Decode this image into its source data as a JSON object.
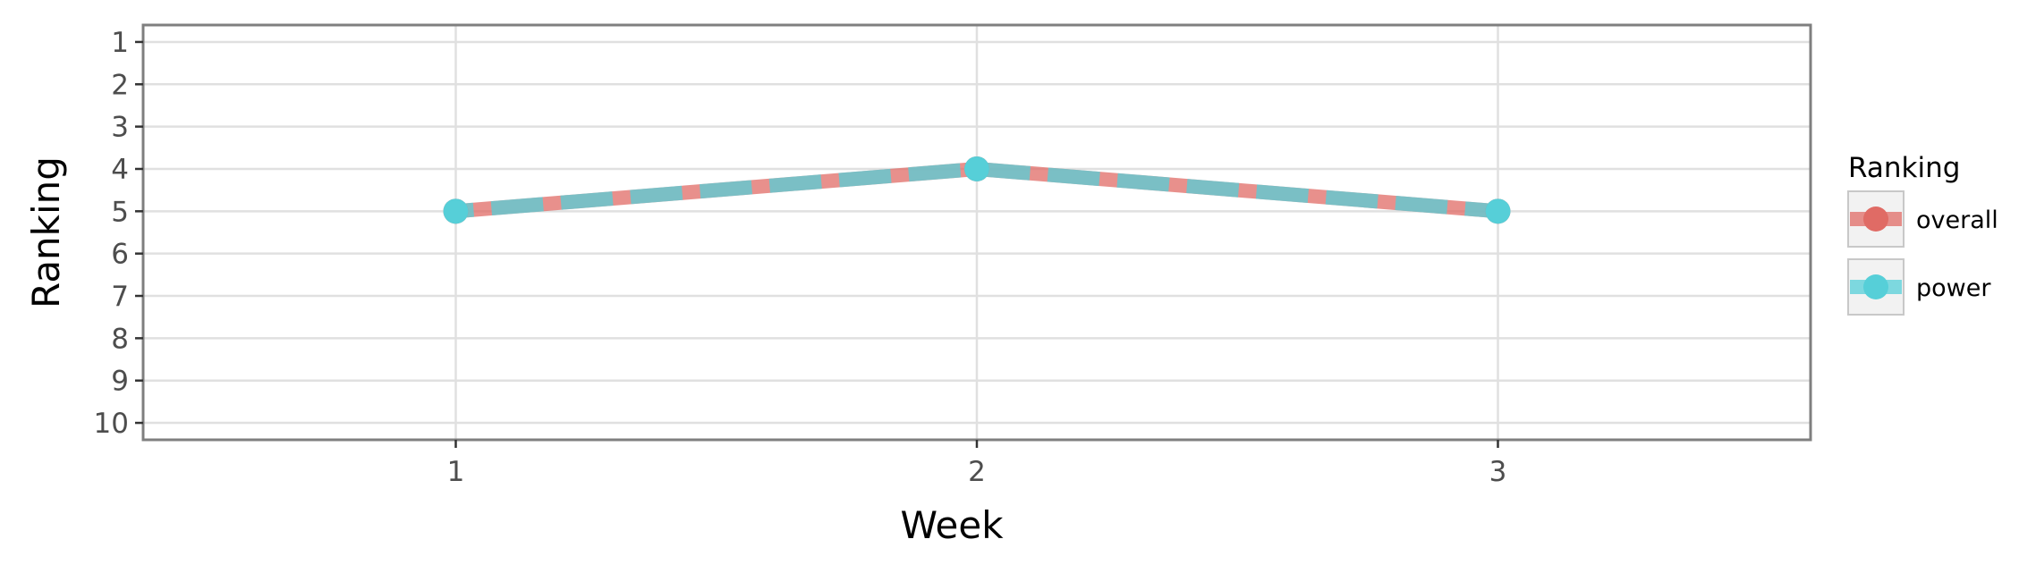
{
  "chart_data": {
    "type": "line",
    "xlabel": "Week",
    "ylabel": "Ranking",
    "x": [
      1,
      2,
      3
    ],
    "x_ticks": [
      "1",
      "2",
      "3"
    ],
    "xlim": [
      0.4,
      3.6
    ],
    "y_ticks": [
      "1",
      "2",
      "3",
      "4",
      "5",
      "6",
      "7",
      "8",
      "9",
      "10"
    ],
    "ylim": [
      10.4,
      0.6
    ],
    "y_reversed": true,
    "grid": true,
    "legend_placement": "right",
    "legend_title": "Ranking",
    "series": [
      {
        "name": "overall",
        "values": [
          5,
          4,
          5
        ],
        "color": "#e06b65"
      },
      {
        "name": "power",
        "values": [
          5,
          4,
          5
        ],
        "color": "#56cfd8"
      }
    ]
  }
}
